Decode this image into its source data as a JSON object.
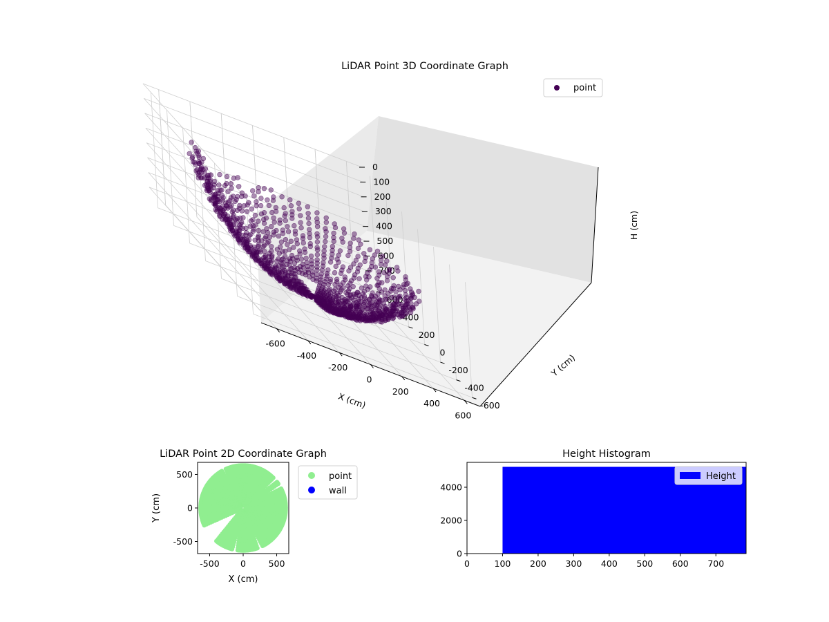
{
  "colors": {
    "point3d": "#440154",
    "point2d": "#90ee90",
    "wall": "#0000ff",
    "histogram": "#0000ff"
  },
  "chart_data": [
    {
      "type": "scatter",
      "projection": "3d",
      "title": "LiDAR Point 3D Coordinate Graph",
      "xlabel": "X (cm)",
      "ylabel": "Y (cm)",
      "zlabel": "H (cm)",
      "xlim": [
        -700,
        700
      ],
      "ylim": [
        -700,
        700
      ],
      "zlim": [
        780,
        0
      ],
      "z_inverted": true,
      "grid": true,
      "xticks": [
        "-600",
        "-400",
        "-200",
        "0",
        "200",
        "400",
        "600"
      ],
      "yticks": [
        "-600",
        "-400",
        "-200",
        "0",
        "200",
        "400",
        "600"
      ],
      "zticks": [
        "0",
        "100",
        "200",
        "300",
        "400",
        "500",
        "600",
        "700"
      ],
      "legend": {
        "placement": "top-right",
        "entries": [
          "point"
        ]
      },
      "series": [
        {
          "name": "point",
          "shape": "hemispherical dome scan, radius approx 700 cm, apex at H approx 750 cm, near-side sweeps missing",
          "x": [
            0,
            120,
            240,
            360,
            480,
            600,
            -120,
            -240,
            -360,
            -480,
            -600,
            0,
            0,
            0,
            0,
            0,
            350,
            -350,
            350,
            -350
          ],
          "y": [
            0,
            0,
            0,
            0,
            0,
            0,
            0,
            0,
            0,
            0,
            0,
            200,
            400,
            600,
            -300,
            -600,
            350,
            350,
            -350,
            -350
          ],
          "h": [
            750,
            740,
            710,
            650,
            560,
            400,
            740,
            710,
            650,
            560,
            400,
            720,
            630,
            400,
            690,
            400,
            600,
            600,
            600,
            600
          ]
        }
      ]
    },
    {
      "type": "scatter",
      "title": "LiDAR Point 2D Coordinate Graph",
      "xlabel": "X (cm)",
      "ylabel": "Y (cm)",
      "xlim": [
        -680,
        680
      ],
      "ylim": [
        -680,
        680
      ],
      "xticks": [
        "-500",
        "0",
        "500"
      ],
      "yticks": [
        "-500",
        "0",
        "500"
      ],
      "legend": {
        "placement": "outside-right",
        "entries": [
          "point",
          "wall"
        ]
      },
      "series": [
        {
          "name": "point",
          "shape": "filled disk of radius approx 650 cm with wedge-shaped gaps"
        },
        {
          "name": "wall",
          "x": [],
          "y": []
        }
      ]
    },
    {
      "type": "bar",
      "title": "Height Histogram",
      "xlim": [
        0,
        785
      ],
      "ylim": [
        0,
        5500
      ],
      "xticks": [
        "0",
        "100",
        "200",
        "300",
        "400",
        "500",
        "600",
        "700"
      ],
      "yticks": [
        "0",
        "2000",
        "4000"
      ],
      "legend": {
        "placement": "top-right",
        "entries": [
          "Height"
        ]
      },
      "series": [
        {
          "name": "Height",
          "bins": [
            [
              100,
              785
            ]
          ],
          "values": [
            5230
          ]
        }
      ]
    }
  ]
}
